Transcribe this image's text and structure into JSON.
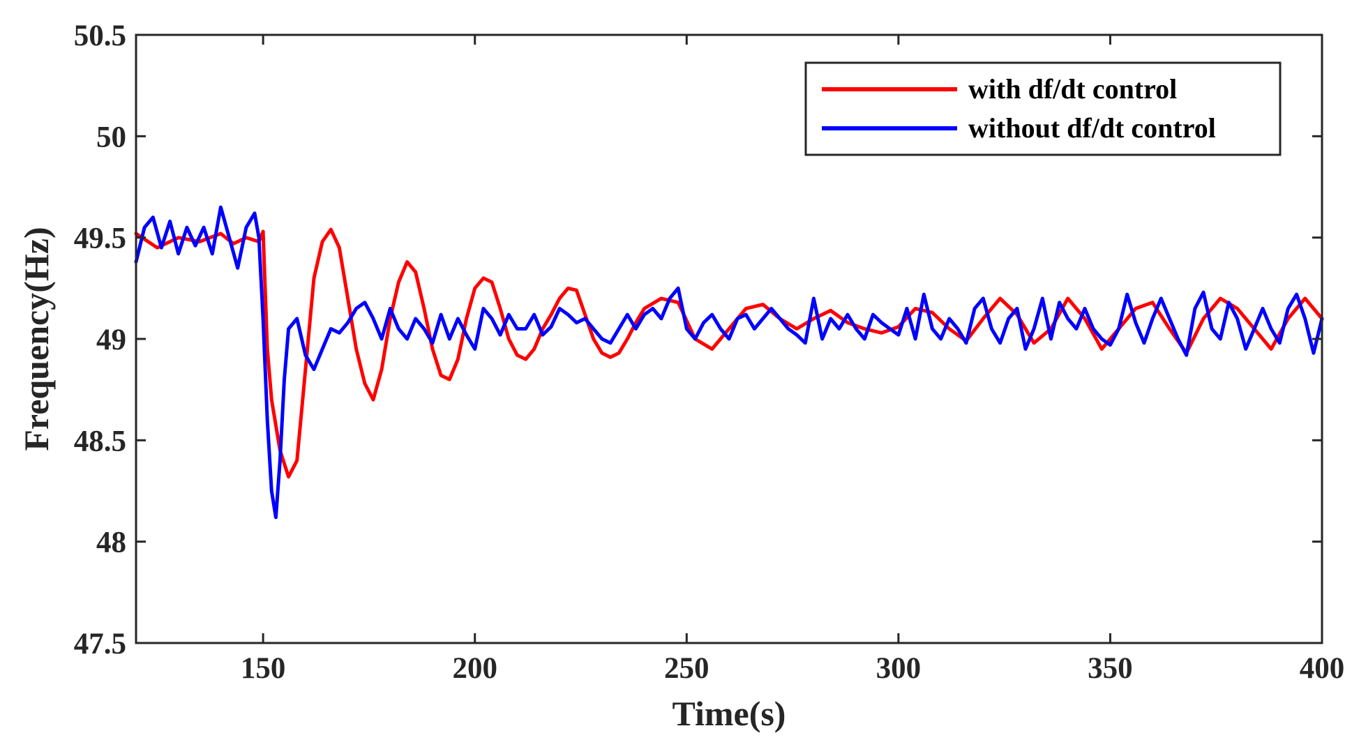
{
  "chart_data": {
    "type": "line",
    "title": "",
    "xlabel": "Time(s)",
    "ylabel": "Frequency(Hz)",
    "xlim": [
      120,
      400
    ],
    "ylim": [
      47.5,
      50.5
    ],
    "xticks": [
      150,
      200,
      250,
      300,
      350,
      400
    ],
    "xtick_labels": [
      "150",
      "200",
      "250",
      "300",
      "350",
      "400"
    ],
    "yticks": [
      47.5,
      48,
      48.5,
      49,
      49.5,
      50,
      50.5
    ],
    "ytick_labels": [
      "47.5",
      "48",
      "48.5",
      "49",
      "49.5",
      "50",
      "50.5"
    ],
    "grid": false,
    "legend_position": "top-right",
    "series": [
      {
        "name": "with df/dt control",
        "color": "#ff0000",
        "x": [
          120,
          125,
          130,
          135,
          140,
          143,
          146,
          149,
          150,
          151,
          152,
          154,
          156,
          158,
          160,
          162,
          164,
          166,
          168,
          170,
          172,
          174,
          176,
          178,
          180,
          182,
          184,
          186,
          188,
          190,
          192,
          194,
          196,
          198,
          200,
          202,
          204,
          206,
          208,
          210,
          212,
          214,
          216,
          218,
          220,
          222,
          224,
          226,
          228,
          230,
          232,
          234,
          236,
          238,
          240,
          244,
          248,
          252,
          256,
          260,
          264,
          268,
          272,
          276,
          280,
          284,
          288,
          292,
          296,
          300,
          304,
          308,
          312,
          316,
          320,
          324,
          328,
          332,
          336,
          340,
          344,
          348,
          352,
          356,
          360,
          364,
          368,
          372,
          376,
          380,
          384,
          388,
          392,
          396,
          400
        ],
        "y": [
          49.52,
          49.45,
          49.5,
          49.48,
          49.52,
          49.47,
          49.5,
          49.48,
          49.53,
          48.95,
          48.7,
          48.45,
          48.32,
          48.4,
          48.85,
          49.3,
          49.48,
          49.54,
          49.45,
          49.2,
          48.95,
          48.78,
          48.7,
          48.85,
          49.1,
          49.28,
          49.38,
          49.33,
          49.15,
          48.95,
          48.82,
          48.8,
          48.9,
          49.1,
          49.25,
          49.3,
          49.28,
          49.15,
          49.0,
          48.92,
          48.9,
          48.95,
          49.05,
          49.12,
          49.2,
          49.25,
          49.24,
          49.12,
          49.0,
          48.93,
          48.91,
          48.93,
          49.0,
          49.08,
          49.15,
          49.2,
          49.18,
          49.0,
          48.95,
          49.05,
          49.15,
          49.17,
          49.1,
          49.05,
          49.1,
          49.14,
          49.08,
          49.05,
          49.03,
          49.06,
          49.15,
          49.13,
          49.05,
          48.99,
          49.1,
          49.2,
          49.12,
          48.98,
          49.05,
          49.2,
          49.1,
          48.95,
          49.05,
          49.15,
          49.18,
          49.05,
          48.93,
          49.1,
          49.2,
          49.15,
          49.05,
          48.95,
          49.1,
          49.2,
          49.1
        ],
        "line_width": 5
      },
      {
        "name": "without df/dt control",
        "color": "#0000ff",
        "x": [
          120,
          122,
          124,
          126,
          128,
          130,
          132,
          134,
          136,
          138,
          140,
          142,
          144,
          146,
          148,
          149,
          150,
          151,
          152,
          153,
          154,
          155,
          156,
          158,
          160,
          162,
          164,
          166,
          168,
          170,
          172,
          174,
          176,
          178,
          180,
          182,
          184,
          186,
          188,
          190,
          192,
          194,
          196,
          198,
          200,
          202,
          204,
          206,
          208,
          210,
          212,
          214,
          216,
          218,
          220,
          222,
          224,
          226,
          228,
          230,
          232,
          234,
          236,
          238,
          240,
          242,
          244,
          246,
          248,
          250,
          252,
          254,
          256,
          258,
          260,
          262,
          264,
          266,
          268,
          270,
          272,
          274,
          276,
          278,
          280,
          282,
          284,
          286,
          288,
          290,
          292,
          294,
          296,
          298,
          300,
          302,
          304,
          306,
          308,
          310,
          312,
          314,
          316,
          318,
          320,
          322,
          324,
          326,
          328,
          330,
          332,
          334,
          336,
          338,
          340,
          342,
          344,
          346,
          348,
          350,
          352,
          354,
          356,
          358,
          360,
          362,
          364,
          366,
          368,
          370,
          372,
          374,
          376,
          378,
          380,
          382,
          384,
          386,
          388,
          390,
          392,
          394,
          396,
          398,
          400
        ],
        "y": [
          49.38,
          49.55,
          49.6,
          49.45,
          49.58,
          49.42,
          49.55,
          49.46,
          49.55,
          49.42,
          49.65,
          49.5,
          49.35,
          49.55,
          49.62,
          49.5,
          49.1,
          48.6,
          48.25,
          48.12,
          48.4,
          48.8,
          49.05,
          49.1,
          48.92,
          48.85,
          48.95,
          49.05,
          49.03,
          49.08,
          49.15,
          49.18,
          49.1,
          49.0,
          49.15,
          49.05,
          49.0,
          49.1,
          49.05,
          48.98,
          49.12,
          49.0,
          49.1,
          49.02,
          48.95,
          49.15,
          49.1,
          49.02,
          49.12,
          49.05,
          49.05,
          49.12,
          49.02,
          49.06,
          49.15,
          49.12,
          49.08,
          49.1,
          49.05,
          49.0,
          48.98,
          49.05,
          49.12,
          49.05,
          49.12,
          49.15,
          49.1,
          49.2,
          49.25,
          49.05,
          49.0,
          49.08,
          49.12,
          49.05,
          49.0,
          49.1,
          49.12,
          49.05,
          49.1,
          49.15,
          49.1,
          49.05,
          49.02,
          48.98,
          49.2,
          49.0,
          49.1,
          49.05,
          49.12,
          49.05,
          49.0,
          49.12,
          49.08,
          49.05,
          49.02,
          49.15,
          49.0,
          49.22,
          49.05,
          49.0,
          49.1,
          49.05,
          48.98,
          49.15,
          49.2,
          49.05,
          48.98,
          49.1,
          49.15,
          48.95,
          49.05,
          49.2,
          49.0,
          49.18,
          49.1,
          49.05,
          49.15,
          49.05,
          49.0,
          48.97,
          49.05,
          49.22,
          49.08,
          48.98,
          49.1,
          49.2,
          49.1,
          49.0,
          48.92,
          49.15,
          49.23,
          49.05,
          49.0,
          49.18,
          49.1,
          48.95,
          49.05,
          49.15,
          49.05,
          48.98,
          49.15,
          49.22,
          49.1,
          48.93,
          49.1
        ],
        "line_width": 5
      }
    ]
  }
}
